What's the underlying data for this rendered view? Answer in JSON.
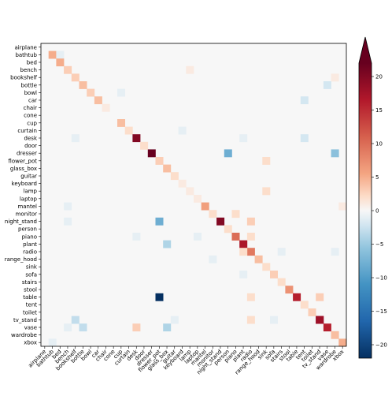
{
  "chart_data": {
    "type": "heatmap",
    "title": "",
    "xlabel": "",
    "ylabel": "",
    "categories": [
      "airplane",
      "bathtub",
      "bed",
      "bench",
      "bookshelf",
      "bottle",
      "bowl",
      "car",
      "chair",
      "cone",
      "cup",
      "curtain",
      "desk",
      "door",
      "dresser",
      "flower_pot",
      "glass_box",
      "guitar",
      "keyboard",
      "lamp",
      "laptop",
      "mantel",
      "monitor",
      "night_stand",
      "person",
      "piano",
      "plant",
      "radio",
      "range_hood",
      "sink",
      "sofa",
      "stairs",
      "stool",
      "table",
      "tent",
      "toilet",
      "tv_stand",
      "vase",
      "wardrobe",
      "xbox"
    ],
    "colorbar": {
      "range": [
        -22,
        22
      ],
      "ticks": [
        -20,
        -15,
        -10,
        -5,
        0,
        5,
        10,
        15,
        20
      ],
      "tick_labels": [
        "−20",
        "−15",
        "−10",
        "−5",
        "0",
        "5",
        "10",
        "15",
        "20"
      ],
      "colormap": "RdBu_r",
      "extend": "max"
    },
    "cells": [
      [
        1,
        1,
        5
      ],
      [
        1,
        2,
        -1
      ],
      [
        2,
        2,
        5
      ],
      [
        3,
        3,
        3
      ],
      [
        4,
        4,
        3
      ],
      [
        5,
        5,
        4
      ],
      [
        6,
        6,
        3
      ],
      [
        7,
        7,
        4
      ],
      [
        8,
        8,
        1
      ],
      [
        10,
        10,
        4
      ],
      [
        11,
        11,
        2
      ],
      [
        12,
        12,
        20
      ],
      [
        13,
        13,
        2
      ],
      [
        14,
        14,
        22
      ],
      [
        15,
        15,
        3
      ],
      [
        16,
        16,
        4
      ],
      [
        17,
        17,
        2
      ],
      [
        18,
        18,
        1
      ],
      [
        19,
        19,
        1
      ],
      [
        20,
        20,
        1
      ],
      [
        21,
        21,
        6
      ],
      [
        22,
        22,
        2
      ],
      [
        23,
        23,
        20
      ],
      [
        24,
        24,
        2
      ],
      [
        25,
        25,
        10
      ],
      [
        26,
        26,
        17
      ],
      [
        27,
        27,
        9
      ],
      [
        28,
        28,
        4
      ],
      [
        29,
        29,
        2
      ],
      [
        30,
        30,
        3
      ],
      [
        31,
        31,
        2
      ],
      [
        32,
        32,
        7
      ],
      [
        33,
        33,
        16
      ],
      [
        34,
        34,
        2
      ],
      [
        35,
        35,
        3
      ],
      [
        36,
        36,
        18
      ],
      [
        37,
        37,
        16
      ],
      [
        38,
        38,
        4
      ],
      [
        39,
        39,
        5
      ],
      [
        14,
        24,
        -8
      ],
      [
        14,
        38,
        -6
      ],
      [
        23,
        15,
        -8
      ],
      [
        33,
        15,
        -22
      ],
      [
        26,
        16,
        -4
      ],
      [
        37,
        16,
        -4
      ],
      [
        37,
        5,
        -3
      ],
      [
        36,
        4,
        -3
      ],
      [
        22,
        25,
        2
      ],
      [
        23,
        27,
        3
      ],
      [
        25,
        27,
        2
      ],
      [
        33,
        27,
        2
      ],
      [
        36,
        27,
        2
      ],
      [
        33,
        36,
        3
      ],
      [
        36,
        36,
        18
      ],
      [
        15,
        29,
        2
      ],
      [
        19,
        29,
        2
      ],
      [
        37,
        12,
        3
      ],
      [
        36,
        17,
        -1
      ],
      [
        30,
        26,
        -1
      ],
      [
        27,
        26,
        2
      ],
      [
        21,
        39,
        1
      ],
      [
        3,
        19,
        1
      ],
      [
        4,
        38,
        1
      ],
      [
        5,
        37,
        -2
      ],
      [
        7,
        34,
        -2
      ],
      [
        6,
        10,
        -1
      ],
      [
        11,
        18,
        -1
      ],
      [
        12,
        4,
        -1
      ],
      [
        12,
        34,
        -2
      ],
      [
        12,
        26,
        -1
      ],
      [
        21,
        3,
        -1
      ],
      [
        23,
        3,
        -1
      ],
      [
        25,
        12,
        -1
      ],
      [
        27,
        31,
        -1
      ],
      [
        25,
        20,
        -1
      ],
      [
        36,
        30,
        -1
      ],
      [
        39,
        1,
        -1
      ],
      [
        27,
        38,
        -1
      ],
      [
        28,
        22,
        -1
      ],
      [
        37,
        3,
        -1
      ]
    ]
  }
}
